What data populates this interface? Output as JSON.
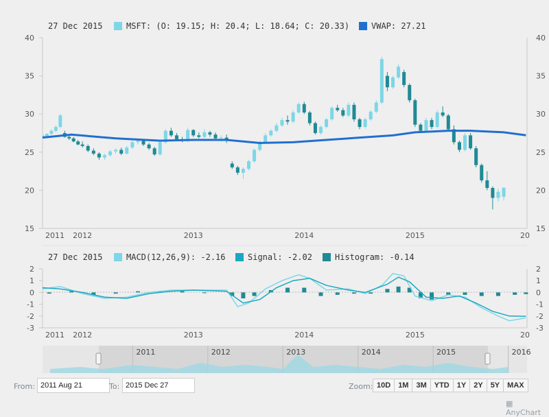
{
  "chart_data": [
    {
      "type": "candlestick",
      "series_name": "MSFT",
      "legend": {
        "date": "27 Dec 2015",
        "msft": "MSFT: (O: 19.15; H: 20.4; L: 18.64; C: 20.33)",
        "vwap": "VWAP: 27.21"
      },
      "ylim": [
        15,
        40
      ],
      "yticks": [
        "15",
        "20",
        "25",
        "30",
        "35",
        "40"
      ],
      "xticks": [
        "2011",
        "2012",
        "2013",
        "2014",
        "2015",
        "20"
      ],
      "colors": {
        "up": "#7ed6e6",
        "down": "#1f8a94",
        "vwap": "#1f6fcf"
      },
      "vwap": [
        [
          2011.64,
          26.9
        ],
        [
          2011.9,
          27.3
        ],
        [
          2012.3,
          26.8
        ],
        [
          2012.7,
          26.5
        ],
        [
          2013.0,
          26.6
        ],
        [
          2013.3,
          26.6
        ],
        [
          2013.6,
          26.2
        ],
        [
          2013.9,
          26.3
        ],
        [
          2014.2,
          26.6
        ],
        [
          2014.5,
          26.9
        ],
        [
          2014.8,
          27.2
        ],
        [
          2015.0,
          27.6
        ],
        [
          2015.3,
          27.8
        ],
        [
          2015.5,
          27.8
        ],
        [
          2015.8,
          27.6
        ],
        [
          2016.0,
          27.21
        ]
      ],
      "candles": [
        [
          2011.65,
          27.0,
          27.3,
          26.8,
          27.1
        ],
        [
          2011.68,
          27.1,
          27.5,
          26.9,
          27.4
        ],
        [
          2011.72,
          27.4,
          28.0,
          27.2,
          27.8
        ],
        [
          2011.76,
          27.8,
          28.5,
          27.6,
          28.3
        ],
        [
          2011.8,
          28.3,
          30.0,
          28.1,
          29.8
        ],
        [
          2011.84,
          27.5,
          27.8,
          26.9,
          27.0
        ],
        [
          2011.88,
          27.0,
          27.3,
          26.6,
          26.8
        ],
        [
          2011.92,
          26.8,
          27.0,
          26.3,
          26.4
        ],
        [
          2011.96,
          26.4,
          26.6,
          25.9,
          26.0
        ],
        [
          2012.0,
          26.0,
          26.4,
          25.6,
          25.8
        ],
        [
          2012.05,
          25.8,
          26.0,
          25.0,
          25.2
        ],
        [
          2012.1,
          25.2,
          25.5,
          24.6,
          24.8
        ],
        [
          2012.15,
          24.8,
          25.0,
          24.0,
          24.3
        ],
        [
          2012.2,
          24.3,
          24.8,
          24.0,
          24.6
        ],
        [
          2012.25,
          24.6,
          25.3,
          24.4,
          25.1
        ],
        [
          2012.3,
          25.1,
          25.5,
          24.8,
          25.3
        ],
        [
          2012.35,
          25.3,
          25.6,
          24.6,
          24.8
        ],
        [
          2012.4,
          24.8,
          25.8,
          24.7,
          25.6
        ],
        [
          2012.45,
          25.6,
          26.5,
          25.4,
          26.3
        ],
        [
          2012.5,
          26.3,
          26.8,
          26.0,
          26.5
        ],
        [
          2012.55,
          26.5,
          26.7,
          25.8,
          26.0
        ],
        [
          2012.6,
          26.0,
          26.2,
          25.3,
          25.5
        ],
        [
          2012.65,
          25.5,
          25.7,
          24.5,
          24.7
        ],
        [
          2012.7,
          24.7,
          26.5,
          24.5,
          26.3
        ],
        [
          2012.75,
          26.3,
          28.0,
          26.1,
          27.8
        ],
        [
          2012.8,
          27.8,
          28.2,
          27.0,
          27.2
        ],
        [
          2012.85,
          27.2,
          27.5,
          26.5,
          26.7
        ],
        [
          2012.9,
          26.7,
          27.0,
          26.3,
          26.5
        ],
        [
          2012.95,
          26.5,
          28.2,
          26.3,
          27.9
        ],
        [
          2013.0,
          27.9,
          28.0,
          27.0,
          27.2
        ],
        [
          2013.05,
          27.2,
          27.6,
          26.8,
          27.0
        ],
        [
          2013.1,
          27.0,
          28.0,
          26.8,
          27.6
        ],
        [
          2013.15,
          27.6,
          27.8,
          27.0,
          27.3
        ],
        [
          2013.2,
          27.3,
          27.6,
          26.5,
          26.8
        ],
        [
          2013.25,
          26.8,
          27.2,
          26.4,
          26.9
        ],
        [
          2013.3,
          26.9,
          27.3,
          26.2,
          26.5
        ],
        [
          2013.35,
          23.5,
          23.8,
          22.8,
          23.0
        ],
        [
          2013.4,
          23.0,
          23.2,
          22.0,
          22.3
        ],
        [
          2013.45,
          22.3,
          23.0,
          21.5,
          22.8
        ],
        [
          2013.5,
          22.8,
          24.0,
          22.6,
          23.8
        ],
        [
          2013.55,
          23.8,
          25.5,
          23.6,
          25.3
        ],
        [
          2013.6,
          25.3,
          26.5,
          25.1,
          26.3
        ],
        [
          2013.65,
          26.3,
          27.5,
          26.1,
          27.2
        ],
        [
          2013.7,
          27.2,
          28.0,
          27.0,
          27.8
        ],
        [
          2013.75,
          27.8,
          28.8,
          27.6,
          28.5
        ],
        [
          2013.8,
          28.5,
          29.5,
          28.3,
          29.2
        ],
        [
          2013.85,
          29.2,
          29.8,
          28.6,
          29.0
        ],
        [
          2013.9,
          29.0,
          30.5,
          28.8,
          30.2
        ],
        [
          2013.95,
          30.2,
          31.5,
          30.0,
          31.3
        ],
        [
          2014.0,
          31.3,
          31.6,
          30.0,
          30.2
        ],
        [
          2014.05,
          30.2,
          30.4,
          28.5,
          28.8
        ],
        [
          2014.1,
          28.8,
          29.0,
          27.3,
          27.5
        ],
        [
          2014.15,
          27.5,
          28.5,
          27.3,
          28.3
        ],
        [
          2014.2,
          28.3,
          29.5,
          28.1,
          29.3
        ],
        [
          2014.25,
          29.3,
          31.0,
          29.1,
          30.8
        ],
        [
          2014.3,
          30.8,
          31.2,
          30.3,
          30.5
        ],
        [
          2014.35,
          30.5,
          30.8,
          29.6,
          29.8
        ],
        [
          2014.4,
          29.8,
          31.5,
          29.6,
          31.2
        ],
        [
          2014.45,
          31.2,
          31.5,
          29.0,
          29.3
        ],
        [
          2014.5,
          29.3,
          29.5,
          28.0,
          28.3
        ],
        [
          2014.55,
          28.3,
          29.5,
          28.1,
          29.3
        ],
        [
          2014.6,
          29.3,
          30.5,
          29.1,
          30.3
        ],
        [
          2014.65,
          30.3,
          31.8,
          30.1,
          31.5
        ],
        [
          2014.7,
          31.5,
          37.5,
          31.3,
          37.2
        ],
        [
          2014.75,
          35.0,
          35.5,
          33.0,
          33.5
        ],
        [
          2014.8,
          33.5,
          35.0,
          33.3,
          34.8
        ],
        [
          2014.85,
          34.8,
          36.5,
          34.6,
          36.2
        ],
        [
          2014.9,
          35.5,
          35.8,
          33.5,
          33.8
        ],
        [
          2014.95,
          33.8,
          34.0,
          31.5,
          31.8
        ],
        [
          2015.0,
          31.8,
          32.0,
          28.3,
          28.6
        ],
        [
          2015.05,
          28.6,
          28.8,
          27.5,
          27.8
        ],
        [
          2015.1,
          27.8,
          29.5,
          27.6,
          29.2
        ],
        [
          2015.15,
          29.2,
          29.5,
          28.0,
          28.3
        ],
        [
          2015.2,
          28.3,
          30.5,
          28.1,
          30.2
        ],
        [
          2015.25,
          30.2,
          31.0,
          29.6,
          29.8
        ],
        [
          2015.3,
          29.8,
          30.0,
          27.8,
          28.0
        ],
        [
          2015.35,
          28.0,
          28.5,
          26.0,
          26.3
        ],
        [
          2015.4,
          26.3,
          26.5,
          25.0,
          25.3
        ],
        [
          2015.45,
          25.3,
          27.5,
          25.1,
          27.2
        ],
        [
          2015.5,
          27.2,
          27.5,
          25.3,
          25.5
        ],
        [
          2015.55,
          25.5,
          25.8,
          23.0,
          23.3
        ],
        [
          2015.6,
          23.3,
          23.5,
          21.0,
          21.3
        ],
        [
          2015.65,
          21.3,
          22.5,
          20.0,
          20.3
        ],
        [
          2015.7,
          20.3,
          20.5,
          17.5,
          19.0
        ],
        [
          2015.75,
          19.0,
          20.2,
          18.5,
          19.8
        ],
        [
          2015.8,
          19.15,
          20.4,
          18.64,
          20.33
        ]
      ]
    },
    {
      "type": "macd",
      "legend": {
        "date": "27 Dec 2015",
        "macd": "MACD(12,26,9): -2.16",
        "signal": "Signal: -2.02",
        "histogram": "Histogram: -0.14"
      },
      "ylim": [
        -3,
        2
      ],
      "yticks": [
        "-3",
        "-2",
        "-1",
        "0",
        "1",
        "2"
      ],
      "xticks": [
        "2011",
        "2012",
        "2013",
        "2014",
        "2015",
        "20"
      ],
      "colors": {
        "macd": "#7ed6e6",
        "signal": "#1aa8c0",
        "histogram": "#1f8a94"
      },
      "macd": [
        [
          2011.64,
          0.3
        ],
        [
          2011.8,
          0.5
        ],
        [
          2012.0,
          -0.1
        ],
        [
          2012.2,
          -0.5
        ],
        [
          2012.4,
          -0.4
        ],
        [
          2012.6,
          0.0
        ],
        [
          2012.8,
          0.2
        ],
        [
          2013.0,
          0.2
        ],
        [
          2013.3,
          0.2
        ],
        [
          2013.4,
          -1.2
        ],
        [
          2013.5,
          -0.9
        ],
        [
          2013.65,
          0.3
        ],
        [
          2013.8,
          1.0
        ],
        [
          2013.95,
          1.5
        ],
        [
          2014.05,
          1.2
        ],
        [
          2014.2,
          0.2
        ],
        [
          2014.4,
          0.3
        ],
        [
          2014.55,
          -0.1
        ],
        [
          2014.7,
          0.6
        ],
        [
          2014.8,
          1.6
        ],
        [
          2014.9,
          1.4
        ],
        [
          2015.0,
          -0.3
        ],
        [
          2015.15,
          -0.7
        ],
        [
          2015.3,
          -0.2
        ],
        [
          2015.45,
          -0.4
        ],
        [
          2015.6,
          -1.3
        ],
        [
          2015.75,
          -2.0
        ],
        [
          2015.85,
          -2.4
        ],
        [
          2016.0,
          -2.16
        ]
      ],
      "signal": [
        [
          2011.64,
          0.4
        ],
        [
          2011.8,
          0.3
        ],
        [
          2012.0,
          0.0
        ],
        [
          2012.2,
          -0.4
        ],
        [
          2012.4,
          -0.5
        ],
        [
          2012.6,
          -0.1
        ],
        [
          2012.8,
          0.1
        ],
        [
          2013.0,
          0.2
        ],
        [
          2013.3,
          0.1
        ],
        [
          2013.45,
          -0.9
        ],
        [
          2013.6,
          -0.6
        ],
        [
          2013.75,
          0.4
        ],
        [
          2013.9,
          1.0
        ],
        [
          2014.05,
          1.2
        ],
        [
          2014.2,
          0.6
        ],
        [
          2014.4,
          0.2
        ],
        [
          2014.55,
          0.0
        ],
        [
          2014.75,
          0.7
        ],
        [
          2014.85,
          1.3
        ],
        [
          2014.95,
          0.9
        ],
        [
          2015.1,
          -0.4
        ],
        [
          2015.25,
          -0.5
        ],
        [
          2015.4,
          -0.3
        ],
        [
          2015.55,
          -0.9
        ],
        [
          2015.7,
          -1.6
        ],
        [
          2015.85,
          -2.0
        ],
        [
          2016.0,
          -2.02
        ]
      ],
      "histogram": [
        [
          2011.7,
          -0.1
        ],
        [
          2011.9,
          0.1
        ],
        [
          2012.1,
          -0.2
        ],
        [
          2012.3,
          -0.1
        ],
        [
          2012.5,
          0.1
        ],
        [
          2012.7,
          0.1
        ],
        [
          2012.9,
          0.1
        ],
        [
          2013.1,
          0.0
        ],
        [
          2013.35,
          -0.3
        ],
        [
          2013.45,
          -0.5
        ],
        [
          2013.55,
          -0.3
        ],
        [
          2013.7,
          0.2
        ],
        [
          2013.85,
          0.4
        ],
        [
          2014.0,
          0.4
        ],
        [
          2014.15,
          -0.3
        ],
        [
          2014.3,
          -0.2
        ],
        [
          2014.45,
          -0.1
        ],
        [
          2014.6,
          -0.1
        ],
        [
          2014.75,
          0.3
        ],
        [
          2014.85,
          0.5
        ],
        [
          2014.95,
          0.4
        ],
        [
          2015.05,
          -0.5
        ],
        [
          2015.15,
          -0.6
        ],
        [
          2015.3,
          -0.2
        ],
        [
          2015.45,
          -0.2
        ],
        [
          2015.6,
          -0.3
        ],
        [
          2015.75,
          -0.3
        ],
        [
          2015.9,
          -0.2
        ],
        [
          2016.0,
          -0.14
        ]
      ]
    },
    {
      "type": "area",
      "name": "scroller",
      "xticks": [
        "2011",
        "2012",
        "2013",
        "2014",
        "2015",
        "2016"
      ],
      "selection": {
        "from": 2011.64,
        "to": 2016.0
      },
      "volume": [
        [
          2009.9,
          0.2
        ],
        [
          2010.3,
          0.3
        ],
        [
          2010.6,
          0.2
        ],
        [
          2011.0,
          0.4
        ],
        [
          2011.3,
          0.3
        ],
        [
          2011.6,
          0.2
        ],
        [
          2011.9,
          0.5
        ],
        [
          2012.2,
          0.3
        ],
        [
          2012.5,
          0.4
        ],
        [
          2012.8,
          0.3
        ],
        [
          2013.0,
          0.2
        ],
        [
          2013.2,
          0.9
        ],
        [
          2013.4,
          0.3
        ],
        [
          2013.7,
          0.4
        ],
        [
          2014.0,
          0.3
        ],
        [
          2014.3,
          0.2
        ],
        [
          2014.6,
          0.4
        ],
        [
          2014.9,
          0.3
        ],
        [
          2015.2,
          0.5
        ],
        [
          2015.5,
          0.3
        ],
        [
          2015.8,
          0.2
        ],
        [
          2016.0,
          0.3
        ]
      ]
    }
  ],
  "controls": {
    "from_label": "From:",
    "from_value": "2011 Aug 21",
    "to_label": "To:",
    "to_value": "2015 Dec 27",
    "zoom_label": "Zoom:",
    "zoom_buttons": [
      "10D",
      "1M",
      "3M",
      "YTD",
      "1Y",
      "2Y",
      "5Y",
      "MAX"
    ]
  },
  "credits": "AnyChart"
}
